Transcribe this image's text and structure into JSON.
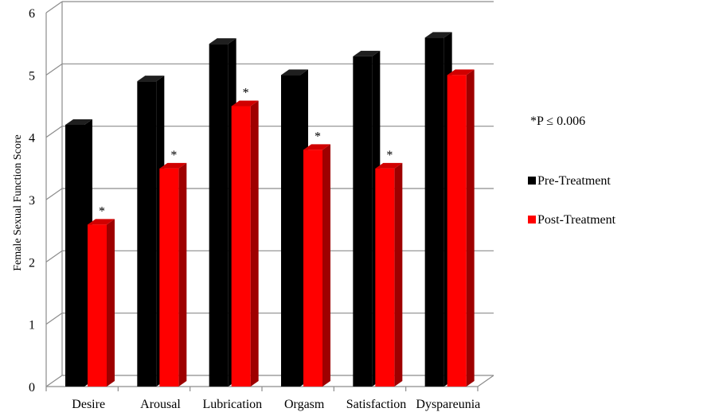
{
  "chart_data": {
    "type": "bar",
    "ylabel": "Female Sexual Function Score",
    "xlabel": "",
    "ylim": [
      0,
      6
    ],
    "yticks": [
      "0",
      "1",
      "2",
      "3",
      "4",
      "5",
      "6"
    ],
    "grid": true,
    "categories": [
      "Desire",
      "Arousal",
      "Lubrication",
      "Orgasm",
      "Satisfaction",
      "Dyspareunia"
    ],
    "series": [
      {
        "name": "Pre-Treatment",
        "color": "#000000",
        "values": [
          4.2,
          4.9,
          5.5,
          5.0,
          5.3,
          5.6
        ]
      },
      {
        "name": "Post-Treatment",
        "color": "#ff0000",
        "values": [
          2.6,
          3.5,
          4.5,
          3.8,
          3.5,
          5.0
        ]
      }
    ],
    "significance": [
      true,
      true,
      true,
      true,
      true,
      false
    ],
    "significance_marker": "*",
    "annotation": "*P ≤ 0.006",
    "legend_position": "right"
  }
}
